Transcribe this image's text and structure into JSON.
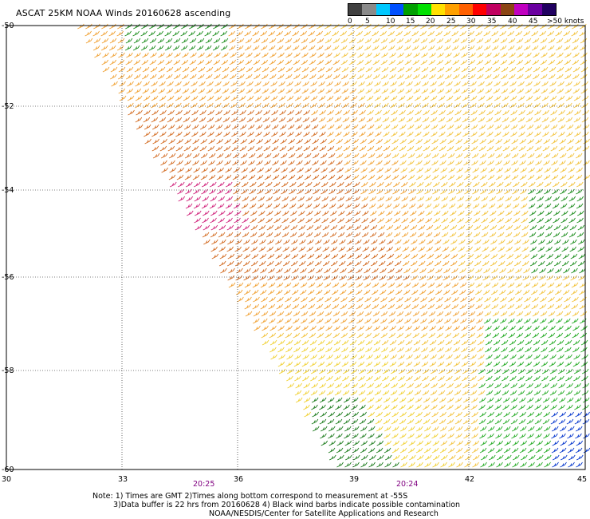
{
  "title": "ASCAT 25KM NOAA Winds 20160628 ascending",
  "legend": {
    "labels": [
      "0",
      "5",
      "10",
      "15",
      "20",
      "25",
      "30",
      "35",
      "40",
      "45",
      ">50 knots"
    ],
    "colors": [
      "#404040",
      "#8a8a8a",
      "#00c8ff",
      "#0050ff",
      "#00a000",
      "#00e000",
      "#ffe000",
      "#ffa000",
      "#ff6000",
      "#ff0000",
      "#c00060",
      "#8b4513",
      "#c000c0",
      "#6a00a0",
      "#200060"
    ]
  },
  "axes": {
    "lat_labels": [
      "-50",
      "-52",
      "-54",
      "-56",
      "-58",
      "-60"
    ],
    "lon_labels": [
      "30",
      "33",
      "36",
      "39",
      "42",
      "45"
    ]
  },
  "times": [
    "20:25",
    "20:24"
  ],
  "notes": {
    "line1": "Note: 1) Times are GMT 2)Times along bottom correspond to measurement at -55S",
    "line2": "3)Data buffer is 22 hrs from 20160628 4) Black wind barbs indicate possible contamination",
    "line3": "NOAA/NESDIS/Center for Satellite Applications and Research"
  }
}
